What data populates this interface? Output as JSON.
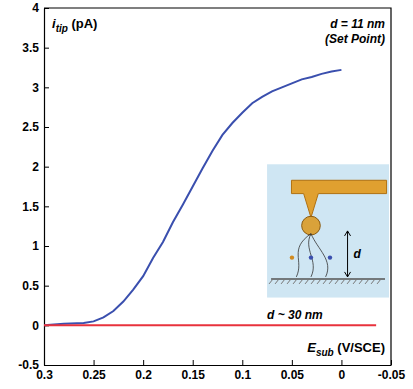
{
  "chart_data": {
    "type": "line",
    "ylabel": {
      "text": "i",
      "sub": "tip",
      "unit": "(pA)"
    },
    "xlabel": {
      "text": "E",
      "sub": "sub",
      "unit": "(V/SCE)"
    },
    "xlim": [
      0.3,
      -0.05
    ],
    "xticks": [
      0.3,
      0.25,
      0.2,
      0.15,
      0.1,
      0.05,
      0,
      -0.05
    ],
    "ylim": [
      -0.5,
      4
    ],
    "yticks": [
      -0.5,
      0,
      0.5,
      1,
      1.5,
      2,
      2.5,
      3,
      3.5,
      4
    ],
    "grid": false,
    "annotations": [
      "(Set Point)",
      "d"
    ],
    "series": [
      {
        "name": "d = 11 nm",
        "color": "#3a4fae",
        "x": [
          0.3,
          0.28,
          0.26,
          0.25,
          0.24,
          0.23,
          0.22,
          0.21,
          0.2,
          0.19,
          0.18,
          0.17,
          0.16,
          0.15,
          0.14,
          0.13,
          0.12,
          0.11,
          0.1,
          0.09,
          0.08,
          0.07,
          0.06,
          0.05,
          0.04,
          0.03,
          0.02,
          0.01,
          0
        ],
        "values": [
          0,
          0.02,
          0.03,
          0.05,
          0.1,
          0.18,
          0.3,
          0.45,
          0.62,
          0.85,
          1.05,
          1.3,
          1.52,
          1.75,
          1.98,
          2.2,
          2.4,
          2.55,
          2.68,
          2.8,
          2.88,
          2.95,
          3.0,
          3.05,
          3.1,
          3.13,
          3.17,
          3.2,
          3.22
        ]
      },
      {
        "name": "d ~ 30 nm",
        "color": "#e8323c",
        "x": [
          0.3,
          0.2,
          0.1,
          0,
          -0.035
        ],
        "values": [
          0,
          0,
          0,
          0,
          0
        ]
      }
    ]
  }
}
